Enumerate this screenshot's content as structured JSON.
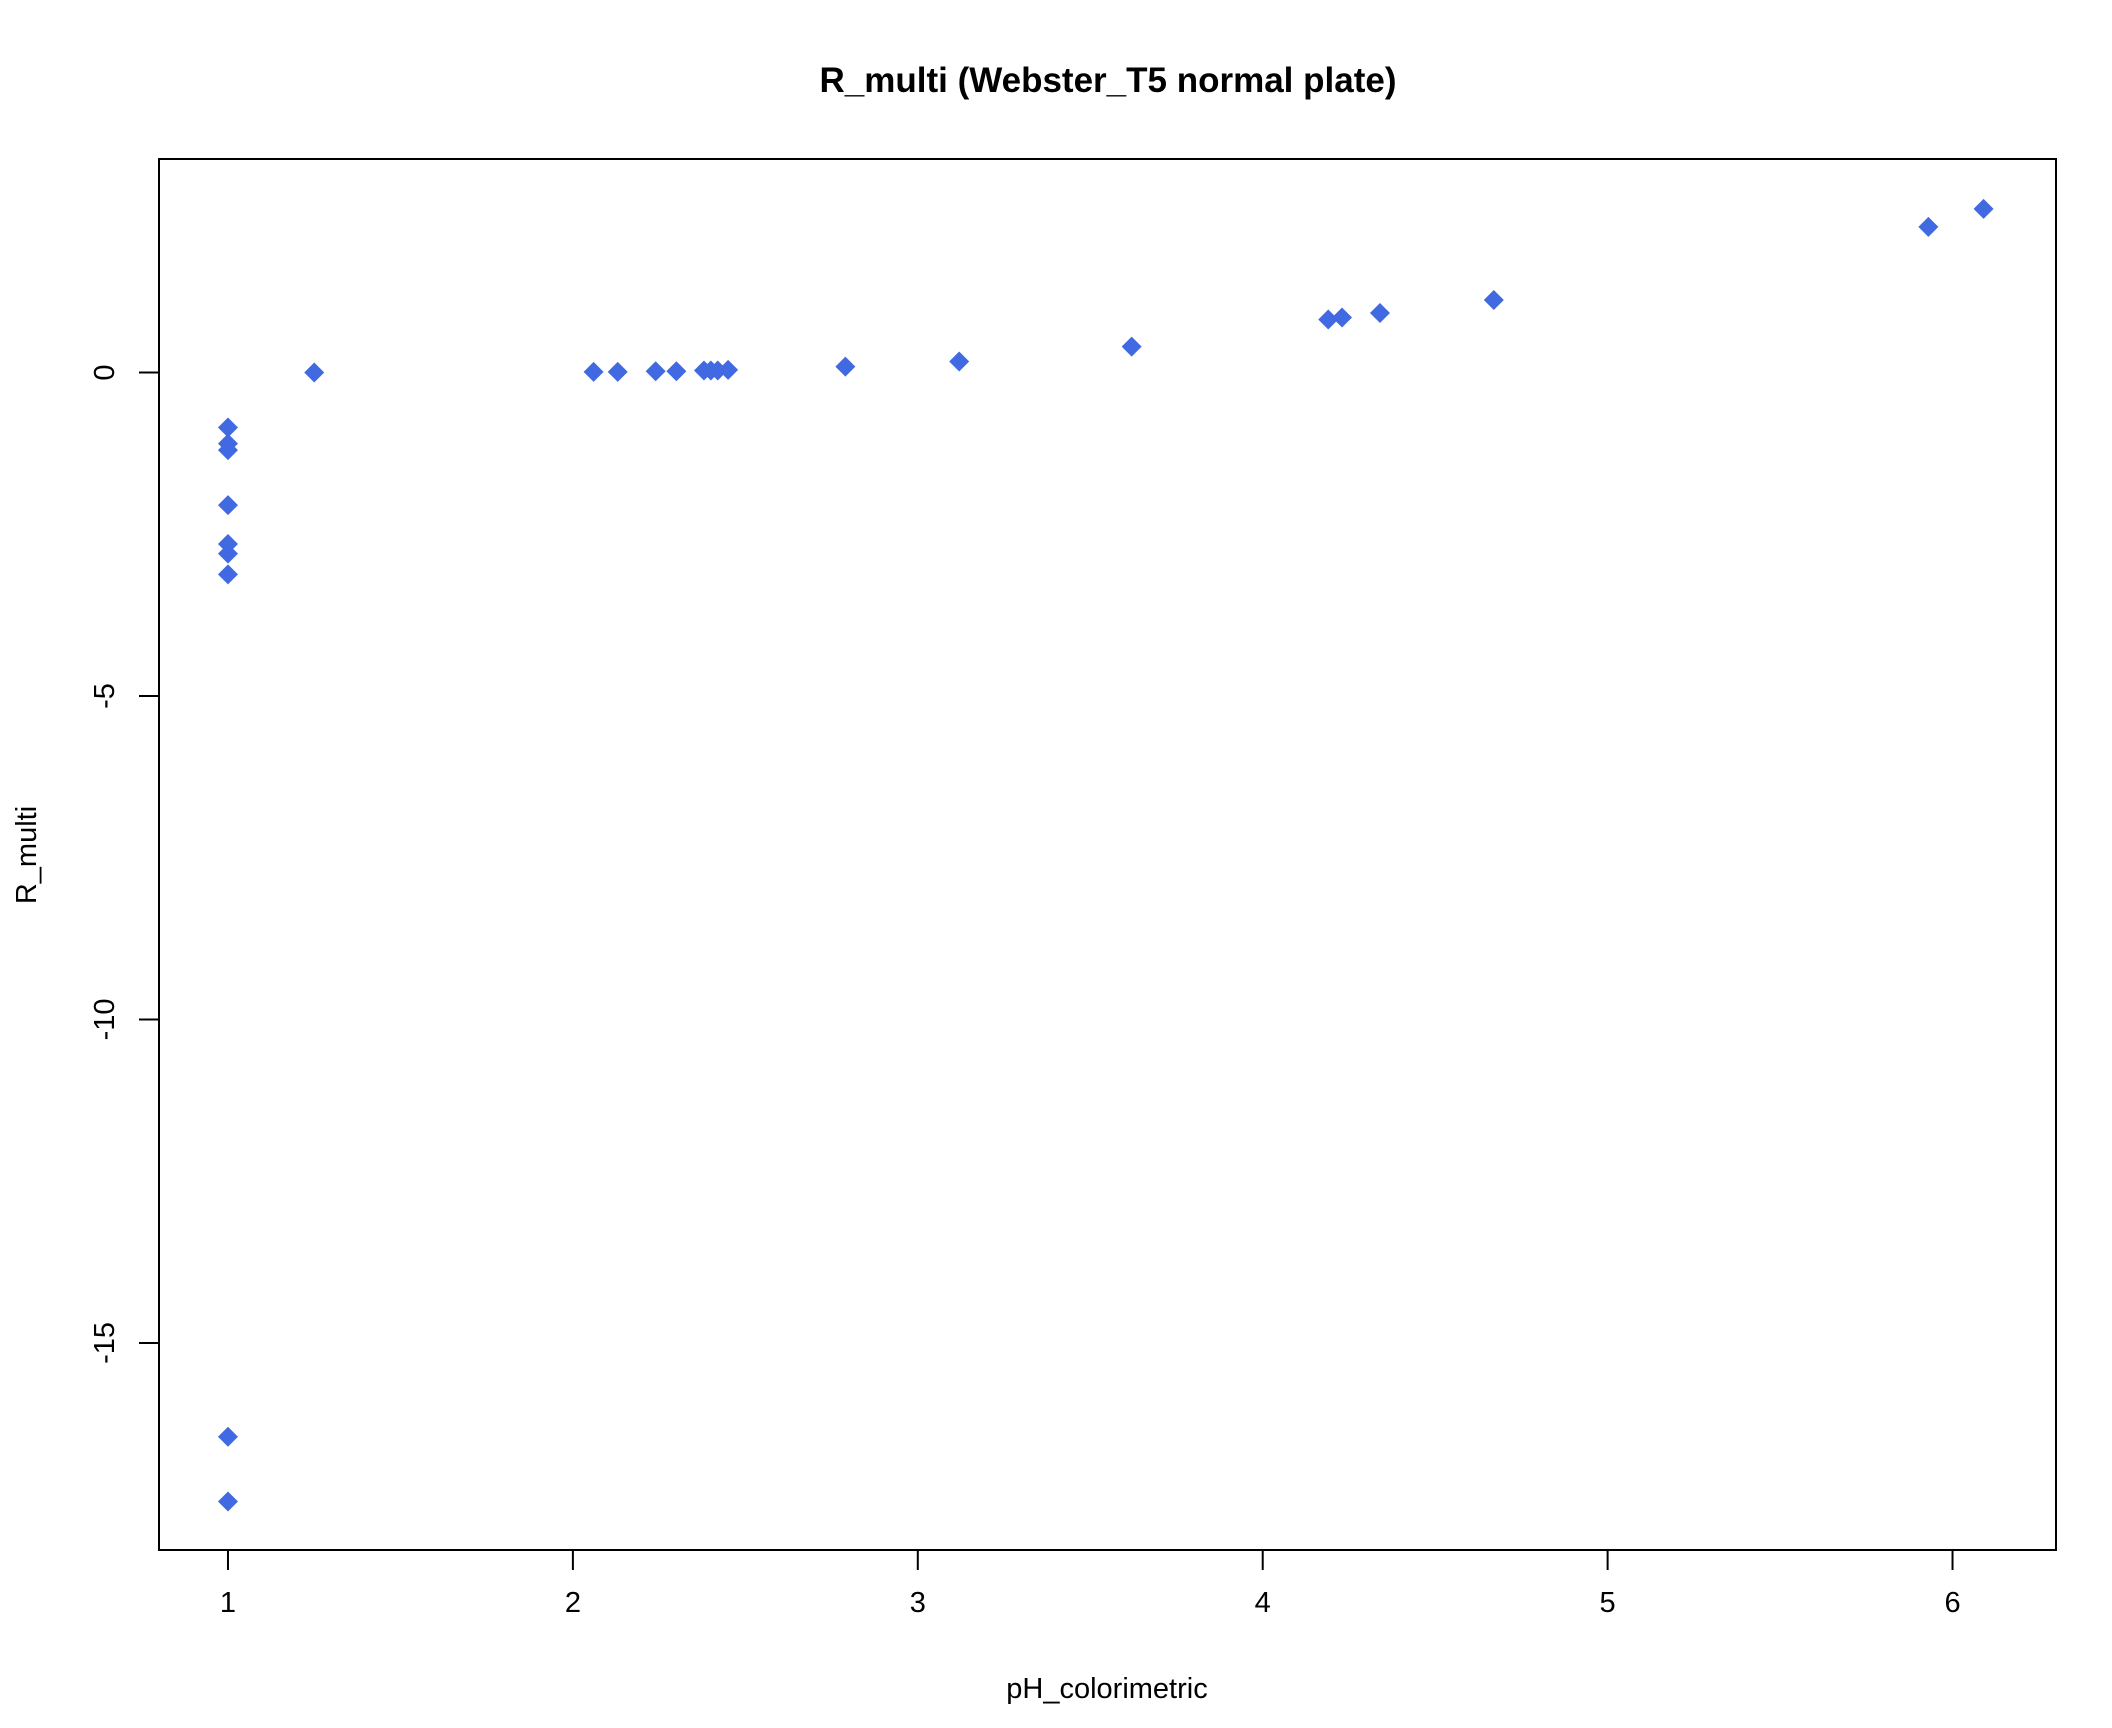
{
  "chart_data": {
    "type": "scatter",
    "title": "R_multi (Webster_T5 normal plate)",
    "xlabel": "pH_colorimetric",
    "ylabel": "R_multi",
    "xlim": [
      0.8,
      6.3
    ],
    "ylim": [
      -18.2,
      3.3
    ],
    "x_ticks": [
      1,
      2,
      3,
      4,
      5,
      6
    ],
    "x_tick_labels": [
      "1",
      "2",
      "3",
      "4",
      "5",
      "6"
    ],
    "y_ticks": [
      -15,
      -10,
      -5,
      0
    ],
    "y_tick_labels": [
      "-15",
      "-10",
      "-5",
      "0"
    ],
    "grid": false,
    "legend": "none",
    "marker": "diamond",
    "color": "#4169E1",
    "points": [
      {
        "x": 1.0,
        "y": -0.85
      },
      {
        "x": 1.0,
        "y": -1.1
      },
      {
        "x": 1.0,
        "y": -1.2
      },
      {
        "x": 1.0,
        "y": -2.05
      },
      {
        "x": 1.0,
        "y": -2.65
      },
      {
        "x": 1.0,
        "y": -2.8
      },
      {
        "x": 1.0,
        "y": -3.12
      },
      {
        "x": 1.0,
        "y": -16.45
      },
      {
        "x": 1.0,
        "y": -17.45
      },
      {
        "x": 1.25,
        "y": 0.0
      },
      {
        "x": 2.06,
        "y": 0.01
      },
      {
        "x": 2.13,
        "y": 0.01
      },
      {
        "x": 2.24,
        "y": 0.02
      },
      {
        "x": 2.3,
        "y": 0.02
      },
      {
        "x": 2.38,
        "y": 0.03
      },
      {
        "x": 2.4,
        "y": 0.03
      },
      {
        "x": 2.42,
        "y": 0.03
      },
      {
        "x": 2.45,
        "y": 0.04
      },
      {
        "x": 2.79,
        "y": 0.09
      },
      {
        "x": 3.12,
        "y": 0.17
      },
      {
        "x": 3.62,
        "y": 0.4
      },
      {
        "x": 4.19,
        "y": 0.82
      },
      {
        "x": 4.23,
        "y": 0.85
      },
      {
        "x": 4.34,
        "y": 0.92
      },
      {
        "x": 4.67,
        "y": 1.12
      },
      {
        "x": 5.93,
        "y": 2.25
      },
      {
        "x": 6.09,
        "y": 2.53
      }
    ]
  }
}
